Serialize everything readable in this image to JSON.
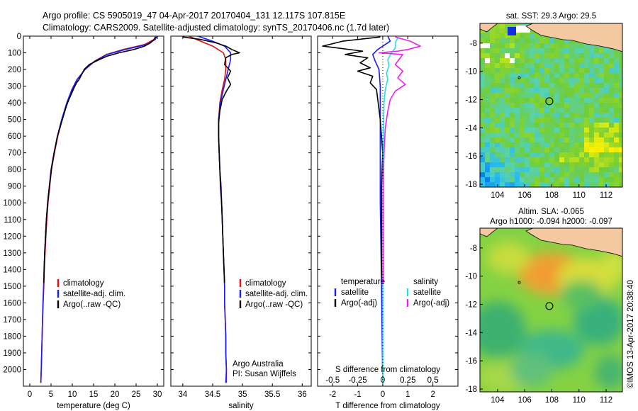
{
  "header": {
    "line1": "Argo profile: CS 5905019_47 04-Apr-2017 20170404_131 12.117S 107.815E",
    "line2": "Climatology: CARS2009. Satellite-adjusted climatology: synTS_20170406.nc (1.7d later)"
  },
  "credit": "©IMOS 13-Apr-2017 20:38:40",
  "colors": {
    "climatology": "#e01010",
    "satellite": "#1a1aff",
    "argo": "#000000",
    "cyan": "#20e0e8",
    "magenta": "#ee20ee"
  },
  "chart_data": [
    {
      "type": "line",
      "name": "temperature-profile",
      "xlabel": "temperature (deg C)",
      "ylim": [
        2100,
        0
      ],
      "xlim": [
        -1.5,
        31.5
      ],
      "xticks": [
        "0",
        "5",
        "10",
        "15",
        "20",
        "25",
        "30"
      ],
      "yticks": [
        "0",
        "100",
        "200",
        "300",
        "400",
        "500",
        "600",
        "700",
        "800",
        "900",
        "1000",
        "1100",
        "1200",
        "1300",
        "1400",
        "1500",
        "1600",
        "1700",
        "1800",
        "1900",
        "2000"
      ],
      "legend": [
        "climatology",
        "satellite-adj. clim.",
        "Argo(..raw -QC)"
      ],
      "series": [
        {
          "name": "climatology",
          "color": "#e01010",
          "points": [
            [
              29.6,
              0
            ],
            [
              29.2,
              20
            ],
            [
              27,
              50
            ],
            [
              22,
              80
            ],
            [
              18,
              110
            ],
            [
              15.2,
              150
            ],
            [
              13,
              200
            ],
            [
              11.2,
              260
            ],
            [
              10,
              320
            ],
            [
              8.8,
              400
            ],
            [
              7.6,
              500
            ],
            [
              6.6,
              600
            ],
            [
              5.8,
              700
            ],
            [
              5.1,
              800
            ],
            [
              4.7,
              900
            ],
            [
              4.3,
              1000
            ],
            [
              4,
              1100
            ],
            [
              3.8,
              1200
            ],
            [
              3.6,
              1300
            ],
            [
              3.4,
              1400
            ],
            [
              3.3,
              1500
            ],
            [
              3.15,
              1600
            ],
            [
              3,
              1700
            ],
            [
              2.9,
              1800
            ],
            [
              2.8,
              1900
            ],
            [
              2.7,
              2000
            ],
            [
              2.6,
              2080
            ]
          ]
        },
        {
          "name": "satellite-adj. clim.",
          "color": "#1a1aff",
          "points": [
            [
              29.9,
              0
            ],
            [
              29.5,
              20
            ],
            [
              27.5,
              50
            ],
            [
              22.5,
              80
            ],
            [
              18.2,
              110
            ],
            [
              15.3,
              150
            ],
            [
              13,
              200
            ],
            [
              11.1,
              260
            ],
            [
              9.9,
              320
            ],
            [
              8.7,
              400
            ],
            [
              7.5,
              500
            ],
            [
              6.5,
              600
            ],
            [
              5.7,
              700
            ],
            [
              5,
              800
            ],
            [
              4.6,
              900
            ],
            [
              4.2,
              1000
            ],
            [
              3.9,
              1100
            ],
            [
              3.7,
              1200
            ],
            [
              3.5,
              1300
            ],
            [
              3.35,
              1400
            ],
            [
              3.25,
              1500
            ],
            [
              3.1,
              1600
            ],
            [
              3,
              1700
            ],
            [
              2.9,
              1800
            ],
            [
              2.8,
              1900
            ],
            [
              2.7,
              2000
            ],
            [
              2.6,
              2080
            ]
          ]
        },
        {
          "name": "Argo(..raw -QC)",
          "color": "#000000",
          "points": [
            [
              29.6,
              5
            ],
            [
              29.2,
              20
            ],
            [
              28.4,
              40
            ],
            [
              27,
              60
            ],
            [
              24.5,
              80
            ],
            [
              21,
              100
            ],
            [
              18.2,
              120
            ],
            [
              16,
              145
            ],
            [
              14,
              170
            ],
            [
              12.8,
              200
            ],
            [
              12.2,
              230
            ],
            [
              11.6,
              260
            ],
            [
              11,
              280
            ],
            [
              10.4,
              310
            ],
            [
              9.9,
              340
            ],
            [
              9.2,
              380
            ],
            [
              8.6,
              420
            ],
            [
              7.9,
              480
            ],
            [
              7.2,
              540
            ],
            [
              6.5,
              600
            ],
            [
              5.8,
              690
            ],
            [
              5.2,
              780
            ],
            [
              4.8,
              860
            ],
            [
              4.4,
              950
            ],
            [
              4.2,
              1000
            ],
            [
              3.9,
              1100
            ],
            [
              3.7,
              1200
            ],
            [
              3.5,
              1300
            ],
            [
              3.4,
              1400
            ],
            [
              3.3,
              1480
            ]
          ]
        }
      ]
    },
    {
      "type": "line",
      "name": "salinity-profile",
      "xlabel": "salinity",
      "ylim": [
        2100,
        0
      ],
      "xlim": [
        33.8,
        36.15
      ],
      "xticks": [
        "34",
        "34.5",
        "35",
        "35.5",
        "36"
      ],
      "legend": [
        "climatology",
        "satellite-adj. clim.",
        "Argo(..raw -QC)"
      ],
      "notes": [
        "Argo Australia",
        "PI: Susan Wijffels"
      ],
      "series": [
        {
          "name": "climatology",
          "color": "#e01010",
          "points": [
            [
              34.1,
              0
            ],
            [
              34.3,
              30
            ],
            [
              34.5,
              60
            ],
            [
              34.68,
              100
            ],
            [
              34.72,
              140
            ],
            [
              34.72,
              200
            ],
            [
              34.7,
              260
            ],
            [
              34.66,
              320
            ],
            [
              34.62,
              400
            ],
            [
              34.6,
              500
            ],
            [
              34.6,
              600
            ],
            [
              34.61,
              700
            ],
            [
              34.62,
              800
            ],
            [
              34.64,
              900
            ],
            [
              34.65,
              1000
            ],
            [
              34.66,
              1100
            ],
            [
              34.67,
              1200
            ],
            [
              34.68,
              1300
            ],
            [
              34.69,
              1400
            ],
            [
              34.7,
              1500
            ],
            [
              34.7,
              1600
            ],
            [
              34.71,
              1700
            ],
            [
              34.72,
              1800
            ],
            [
              34.72,
              1900
            ],
            [
              34.73,
              2000
            ],
            [
              34.73,
              2080
            ]
          ]
        },
        {
          "name": "satellite-adj. clim.",
          "color": "#1a1aff",
          "points": [
            [
              34.25,
              0
            ],
            [
              34.5,
              30
            ],
            [
              34.7,
              60
            ],
            [
              34.8,
              100
            ],
            [
              34.8,
              140
            ],
            [
              34.76,
              200
            ],
            [
              34.72,
              260
            ],
            [
              34.68,
              320
            ],
            [
              34.63,
              400
            ],
            [
              34.6,
              500
            ],
            [
              34.6,
              600
            ],
            [
              34.61,
              700
            ],
            [
              34.62,
              800
            ],
            [
              34.64,
              900
            ],
            [
              34.65,
              1000
            ],
            [
              34.66,
              1100
            ],
            [
              34.67,
              1200
            ],
            [
              34.68,
              1300
            ],
            [
              34.69,
              1400
            ],
            [
              34.7,
              1500
            ],
            [
              34.7,
              1600
            ],
            [
              34.71,
              1700
            ],
            [
              34.72,
              1800
            ],
            [
              34.72,
              1900
            ],
            [
              34.73,
              2000
            ],
            [
              34.72,
              2080
            ]
          ]
        },
        {
          "name": "Argo(..raw -QC)",
          "color": "#000000",
          "points": [
            [
              34.0,
              5
            ],
            [
              34.3,
              20
            ],
            [
              34.55,
              40
            ],
            [
              34.72,
              60
            ],
            [
              34.82,
              80
            ],
            [
              34.95,
              100
            ],
            [
              34.82,
              110
            ],
            [
              34.72,
              130
            ],
            [
              34.7,
              170
            ],
            [
              34.8,
              210
            ],
            [
              34.75,
              250
            ],
            [
              34.8,
              290
            ],
            [
              34.73,
              330
            ],
            [
              34.66,
              380
            ],
            [
              34.62,
              450
            ],
            [
              34.6,
              520
            ],
            [
              34.6,
              600
            ],
            [
              34.61,
              700
            ],
            [
              34.62,
              800
            ],
            [
              34.63,
              900
            ],
            [
              34.65,
              1000
            ],
            [
              34.66,
              1100
            ],
            [
              34.67,
              1200
            ],
            [
              34.68,
              1300
            ],
            [
              34.69,
              1400
            ],
            [
              34.7,
              1480
            ]
          ]
        }
      ]
    },
    {
      "type": "line",
      "name": "difference-profile",
      "xlabel": "T difference from climatology",
      "xlabel_top": "S difference from climatology",
      "ylim": [
        2100,
        0
      ],
      "xlim": [
        -2.6,
        3.0
      ],
      "xticks": [
        "-2",
        "-1",
        "0",
        "1",
        "2"
      ],
      "xticks_s": [
        "-0.5",
        "-0.25",
        "0",
        "0.25",
        "0.5"
      ],
      "legend_t": {
        "title": "temperature",
        "items": [
          "satellite",
          "Argo(-adj)"
        ]
      },
      "legend_s": {
        "title": "salinity",
        "items": [
          "satellite",
          "Argo(-adj)"
        ]
      },
      "series": [
        {
          "name": "T satellite",
          "color": "#1a1aff",
          "points": [
            [
              0.2,
              0
            ],
            [
              0.3,
              30
            ],
            [
              -0.2,
              80
            ],
            [
              -0.4,
              110
            ],
            [
              -0.3,
              150
            ],
            [
              -0.15,
              200
            ],
            [
              -0.1,
              300
            ],
            [
              -0.1,
              400
            ],
            [
              -0.1,
              600
            ],
            [
              -0.1,
              1000
            ],
            [
              -0.05,
              1500
            ],
            [
              0,
              2080
            ]
          ]
        },
        {
          "name": "T Argo(-adj)",
          "color": "#000000",
          "points": [
            [
              -0.1,
              5
            ],
            [
              -1.6,
              30
            ],
            [
              -2.4,
              60
            ],
            [
              -0.8,
              90
            ],
            [
              -1.5,
              110
            ],
            [
              -0.6,
              130
            ],
            [
              -0.9,
              160
            ],
            [
              -0.5,
              190
            ],
            [
              -1.0,
              210
            ],
            [
              -0.4,
              240
            ],
            [
              -0.5,
              280
            ],
            [
              -0.25,
              320
            ],
            [
              -0.2,
              380
            ],
            [
              -0.1,
              500
            ],
            [
              0,
              700
            ],
            [
              -0.05,
              900
            ],
            [
              -0.05,
              1200
            ],
            [
              -0.05,
              1400
            ],
            [
              0,
              1480
            ]
          ]
        },
        {
          "name": "S satellite",
          "color": "#20e0e8",
          "points": [
            [
              0.6,
              10
            ],
            [
              0.5,
              40
            ],
            [
              0.5,
              70
            ],
            [
              0.35,
              100
            ],
            [
              0.2,
              140
            ],
            [
              0.25,
              180
            ],
            [
              0.15,
              220
            ],
            [
              0.2,
              260
            ],
            [
              0.1,
              320
            ],
            [
              0.05,
              400
            ],
            [
              0.02,
              600
            ],
            [
              0,
              1000
            ],
            [
              0,
              1500
            ],
            [
              0,
              2080
            ]
          ]
        },
        {
          "name": "S Argo(-adj)",
          "color": "#ee20ee",
          "points": [
            [
              0.5,
              5
            ],
            [
              1.1,
              30
            ],
            [
              1.5,
              60
            ],
            [
              1.0,
              80
            ],
            [
              0.6,
              90
            ],
            [
              -0.15,
              100
            ],
            [
              0.8,
              110
            ],
            [
              0.7,
              130
            ],
            [
              0.5,
              170
            ],
            [
              0.8,
              210
            ],
            [
              0.6,
              250
            ],
            [
              0.9,
              290
            ],
            [
              0.5,
              330
            ],
            [
              0.3,
              380
            ],
            [
              0.2,
              450
            ],
            [
              0.1,
              550
            ],
            [
              0.05,
              700
            ],
            [
              0.02,
              900
            ],
            [
              0.02,
              1200
            ],
            [
              0.02,
              1480
            ]
          ]
        }
      ]
    },
    {
      "type": "heatmap",
      "name": "sst-map",
      "title": "sat. SST: 29.3 Argo: 29.5",
      "xlim": [
        102.7,
        113.2
      ],
      "ylim": [
        -18.2,
        -6.6
      ],
      "xticks": [
        "104",
        "106",
        "108",
        "110",
        "112"
      ],
      "yticks": [
        "-8",
        "-10",
        "-12",
        "-14",
        "-16",
        "-18"
      ],
      "marker": [
        107.815,
        -12.117
      ]
    },
    {
      "type": "heatmap",
      "name": "sla-map",
      "title": "Altim. SLA: -0.065",
      "subtitle": "Argo h1000: -0.094 h2000: -0.097",
      "xlim": [
        102.7,
        113.2
      ],
      "ylim": [
        -18.2,
        -6.6
      ],
      "xticks": [
        "104",
        "106",
        "108",
        "110",
        "112"
      ],
      "yticks": [
        "-8",
        "-10",
        "-12",
        "-14",
        "-16",
        "-18"
      ],
      "marker": [
        107.815,
        -12.117
      ]
    }
  ]
}
